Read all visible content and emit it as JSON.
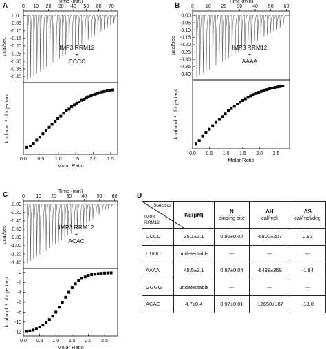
{
  "chart_data": [
    {
      "panel": "A",
      "type": "line",
      "top": {
        "xlabel": "Time (min)",
        "ylabel": "µcal/sec",
        "xlim": [
          0,
          75
        ],
        "ylim": [
          -0.44,
          0.03
        ],
        "xticks": [
          0,
          10,
          20,
          30,
          40,
          50,
          60,
          70
        ],
        "yticks": [
          0.0,
          -0.05,
          -0.1,
          -0.15,
          -0.2,
          -0.25,
          -0.3,
          -0.35,
          -0.4
        ],
        "ytick_labels": [
          "0.00",
          "-0.05",
          "-0.10",
          "-0.15",
          "-0.20",
          "-0.25",
          "-0.30",
          "-0.35",
          "-0.40"
        ],
        "injections": {
          "start": 3,
          "interval": 2.55,
          "count": 28,
          "peak_first": -0.42,
          "peak_last": -0.05
        }
      },
      "annotation": [
        "IMP3 RRM12",
        "+",
        "CCCC"
      ],
      "bottom": {
        "type": "scatter",
        "xlabel": "Molar Ratio",
        "ylabel": "kcal mol⁻¹ of injectant",
        "xlim": [
          0,
          2.7
        ],
        "xticks": [
          0.0,
          0.5,
          1.0,
          1.5,
          2.0,
          2.5
        ],
        "xtick_labels": [
          "0.0",
          "0.5",
          "1.0",
          "1.5",
          "2.0",
          "2.5"
        ],
        "x": [
          0.1,
          0.2,
          0.29,
          0.38,
          0.47,
          0.56,
          0.65,
          0.74,
          0.82,
          0.91,
          0.99,
          1.07,
          1.15,
          1.23,
          1.31,
          1.38,
          1.46,
          1.53,
          1.6,
          1.67,
          1.74,
          1.81,
          1.87,
          1.94,
          2.0,
          2.06,
          2.12,
          2.18,
          2.25,
          2.32,
          2.4,
          2.48,
          2.56
        ],
        "y": [
          -5.8,
          -5.7,
          -5.5,
          -5.2,
          -4.95,
          -4.65,
          -4.4,
          -4.1,
          -3.85,
          -3.6,
          -3.35,
          -3.15,
          -2.9,
          -2.7,
          -2.55,
          -2.35,
          -2.2,
          -2.05,
          -1.95,
          -1.8,
          -1.7,
          -1.6,
          -1.5,
          -1.42,
          -1.35,
          -1.28,
          -1.22,
          -1.16,
          -1.1,
          -1.05,
          -1.0,
          -0.95,
          -0.92
        ],
        "ylim": [
          -6.4,
          -0.3
        ]
      }
    },
    {
      "panel": "B",
      "type": "line",
      "top": {
        "xlabel": "Time (min)",
        "ylabel": "µcal/sec",
        "xlim": [
          0,
          62
        ],
        "ylim": [
          -0.44,
          0.03
        ],
        "xticks": [
          0,
          10,
          20,
          30,
          40,
          50,
          60
        ],
        "yticks": [
          0.0,
          -0.05,
          -0.1,
          -0.15,
          -0.2,
          -0.25,
          -0.3,
          -0.35,
          -0.4
        ],
        "ytick_labels": [
          "0.00",
          "-0.05",
          "-0.10",
          "-0.15",
          "-0.20",
          "-0.25",
          "-0.30",
          "-0.35",
          "-0.40"
        ],
        "injections": {
          "start": 2.5,
          "interval": 2.05,
          "count": 28,
          "peak_first": -0.42,
          "peak_last": -0.07
        }
      },
      "annotation": [
        "IMP3 RRM12",
        "+",
        "AAAA"
      ],
      "bottom": {
        "type": "scatter",
        "xlabel": "Molar Ratio",
        "ylabel": "kcal mol⁻¹ of injectant",
        "xlim": [
          0,
          2.9
        ],
        "xticks": [
          0.0,
          0.5,
          1.0,
          1.5,
          2.0,
          2.5
        ],
        "xtick_labels": [
          "0.0",
          "0.5",
          "1.0",
          "1.5",
          "2.0",
          "2.5"
        ],
        "x": [
          0.1,
          0.2,
          0.3,
          0.4,
          0.5,
          0.6,
          0.7,
          0.8,
          0.89,
          0.98,
          1.07,
          1.16,
          1.25,
          1.34,
          1.42,
          1.5,
          1.58,
          1.66,
          1.74,
          1.82,
          1.9,
          1.98,
          2.06,
          2.14,
          2.22,
          2.3,
          2.38,
          2.46,
          2.54,
          2.62,
          2.7
        ],
        "y": [
          -6.2,
          -5.9,
          -5.5,
          -5.2,
          -4.9,
          -4.6,
          -4.3,
          -4.05,
          -3.8,
          -3.55,
          -3.3,
          -3.1,
          -2.9,
          -2.7,
          -2.55,
          -2.4,
          -2.25,
          -2.12,
          -2.0,
          -1.88,
          -1.78,
          -1.68,
          -1.6,
          -1.52,
          -1.45,
          -1.38,
          -1.32,
          -1.27,
          -1.22,
          -1.18,
          -1.14
        ],
        "ylim": [
          -6.6,
          -0.6
        ]
      }
    },
    {
      "panel": "C",
      "type": "line",
      "top": {
        "xlabel": "Time (min)",
        "ylabel": "µcal/sec",
        "xlim": [
          0,
          62
        ],
        "ylim": [
          -1.55,
          0.08
        ],
        "xticks": [
          0,
          10,
          20,
          30,
          40,
          50,
          60
        ],
        "yticks": [
          0.0,
          -0.2,
          -0.4,
          -0.6,
          -0.8,
          -1.0,
          -1.2,
          -1.4
        ],
        "ytick_labels": [
          "0.00",
          "-0.20",
          "-0.40",
          "-0.60",
          "-0.80",
          "-1.00",
          "-1.20",
          "-1.40"
        ],
        "injections": {
          "start": 2.5,
          "interval": 2.05,
          "count": 28,
          "peak_first": -1.42,
          "peak_last": -0.05
        }
      },
      "annotation": [
        "IMP3 RRM12",
        "+",
        "ACAC"
      ],
      "bottom": {
        "type": "scatter",
        "xlabel": "Molar Ratio",
        "ylabel": "kcal mol⁻¹ of injectant",
        "xlim": [
          0,
          2.9
        ],
        "xticks": [
          0.0,
          0.5,
          1.0,
          1.5,
          2.0,
          2.5
        ],
        "xtick_labels": [
          "0.0",
          "0.5",
          "1.0",
          "1.5",
          "2.0",
          "2.5"
        ],
        "yticks": [
          0,
          -2,
          -4,
          -6,
          -8,
          -10,
          -12
        ],
        "ytick_labels": [
          "0",
          "-2",
          "-4",
          "-6",
          "-8",
          "-10",
          "-12"
        ],
        "ylim": [
          -12.8,
          0.8
        ],
        "x": [
          0.1,
          0.2,
          0.3,
          0.4,
          0.5,
          0.6,
          0.7,
          0.8,
          0.9,
          1.0,
          1.1,
          1.2,
          1.3,
          1.4,
          1.5,
          1.6,
          1.7,
          1.8,
          1.9,
          2.0,
          2.1,
          2.2,
          2.3,
          2.4,
          2.5,
          2.6,
          2.7
        ],
        "y": [
          -11.9,
          -11.8,
          -11.6,
          -11.3,
          -11.0,
          -10.6,
          -10.1,
          -9.5,
          -8.8,
          -8.0,
          -7.0,
          -6.0,
          -5.0,
          -4.0,
          -3.1,
          -2.3,
          -1.7,
          -1.2,
          -0.9,
          -0.6,
          -0.45,
          -0.35,
          -0.25,
          -0.2,
          -0.15,
          -0.12,
          -0.1
        ]
      }
    },
    {
      "panel": "D",
      "type": "table",
      "corner": {
        "top": "Statistics",
        "bottom": [
          "IMP3",
          "RRM12"
        ]
      },
      "columns": [
        {
          "title": "Kd(μM)",
          "unit": ""
        },
        {
          "title": "N",
          "unit": "binding site"
        },
        {
          "title": "ΔH",
          "unit": "cal/mol"
        },
        {
          "title": "ΔS",
          "unit": "cal/mol/deg"
        }
      ],
      "rows": [
        {
          "name": "CCCC",
          "cells": [
            "35.1±2.1",
            "0.96±0.02",
            "-5800±207",
            "0.93"
          ]
        },
        {
          "name": "UUUU",
          "cells": [
            "undetectable",
            "---",
            "---",
            "---"
          ]
        },
        {
          "name": "AAAA",
          "cells": [
            "48.5±3.1",
            "0.87±0.04",
            "-6438±359",
            "-1.84"
          ]
        },
        {
          "name": "GGGG",
          "cells": [
            "undetectable",
            "---",
            "---",
            "---"
          ]
        },
        {
          "name": "ACAC",
          "cells": [
            "4.7±0.4",
            "0.97±0.01",
            "-12650±187",
            "-18.0"
          ]
        }
      ]
    }
  ]
}
